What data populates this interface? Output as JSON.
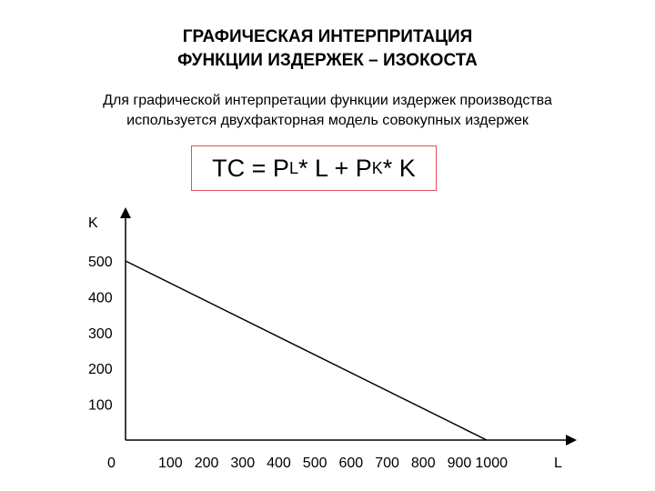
{
  "header": {
    "title_line1": "ГРАФИЧЕСКАЯ ИНТЕРПРИТАЦИЯ",
    "title_line2": "ФУНКЦИИ ИЗДЕРЖЕК – ИЗОКОСТА",
    "subtitle_line1": "Для графической интерпретации  функции издержек производства",
    "subtitle_line2": "используется двухфакторная модель совокупных издержек"
  },
  "formula": {
    "lhs": "TC = P",
    "sub1": "L",
    "mid": "* L + P",
    "sub2": "K",
    "rhs": "* K"
  },
  "chart_data": {
    "type": "line",
    "xlabel": "L",
    "ylabel": "K",
    "x_ticks": [
      100,
      200,
      300,
      400,
      500,
      600,
      700,
      800,
      900,
      1000
    ],
    "y_ticks": [
      100,
      200,
      300,
      400,
      500
    ],
    "origin_label": "0",
    "xlim": [
      0,
      1000
    ],
    "ylim": [
      0,
      500
    ],
    "series": [
      {
        "x": [
          0,
          1000
        ],
        "y": [
          500,
          0
        ],
        "color": "#000000"
      }
    ]
  }
}
